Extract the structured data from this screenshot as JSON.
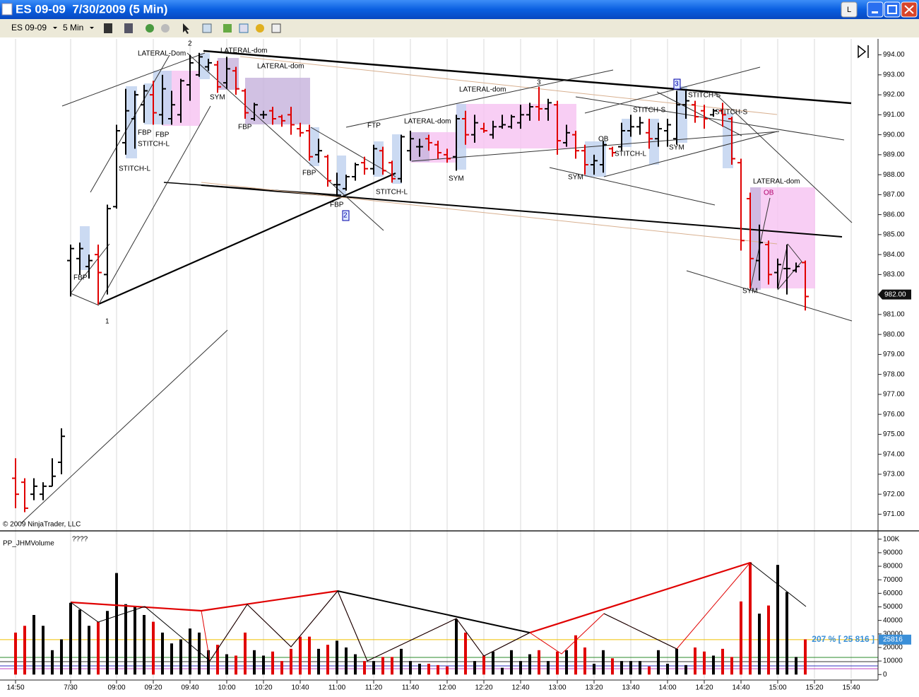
{
  "window": {
    "title": "ES 09-09  7/30/2009 (5 Min)",
    "button": "L"
  },
  "toolbar": {
    "instrument": "ES 09-09",
    "interval": "5 Min"
  },
  "copyright": "© 2009 NinjaTrader, LLC",
  "chart_data": [
    {
      "type": "ohlc",
      "up_color": "#000000",
      "down_color": "#e00000",
      "xgrid": true,
      "ylim": [
        970.2,
        994.8
      ],
      "yticks": [
        {
          "value": 994,
          "label": "994.00"
        },
        {
          "value": 993,
          "label": "993.00"
        },
        {
          "value": 992,
          "label": "992.00"
        },
        {
          "value": 991,
          "label": "991.00"
        },
        {
          "value": 990,
          "label": "990.00"
        },
        {
          "value": 989,
          "label": "989.00"
        },
        {
          "value": 988,
          "label": "988.00"
        },
        {
          "value": 987,
          "label": "987.00"
        },
        {
          "value": 986,
          "label": "986.00"
        },
        {
          "value": 985,
          "label": "985.00"
        },
        {
          "value": 984,
          "label": "984.00"
        },
        {
          "value": 983,
          "label": "983.00"
        },
        {
          "value": 982,
          "label": "982.00"
        },
        {
          "value": 981,
          "label": "981.00"
        },
        {
          "value": 980,
          "label": "980.00"
        },
        {
          "value": 979,
          "label": "979.00"
        },
        {
          "value": 978,
          "label": "978.00"
        },
        {
          "value": 977,
          "label": "977.00"
        },
        {
          "value": 976,
          "label": "976.00"
        },
        {
          "value": 975,
          "label": "975.00"
        },
        {
          "value": 974,
          "label": "974.00"
        },
        {
          "value": 973,
          "label": "973.00"
        },
        {
          "value": 972,
          "label": "972.00"
        },
        {
          "value": 971,
          "label": "971.00"
        }
      ],
      "last": {
        "value": 982,
        "label": "982.00"
      },
      "open": [
        972.8,
        972.6,
        972.0,
        972.0,
        972.4,
        973.6,
        983.7,
        983.8,
        983.4,
        984.0,
        983.0,
        986.4,
        989.6,
        990.8,
        991.5,
        992.0,
        991.0,
        990.8,
        991.0,
        992.5,
        993.0,
        993.4,
        993.5,
        992.6,
        993.2,
        992.2,
        990.8,
        991.0,
        991.2,
        990.9,
        991.0,
        990.3,
        990.2,
        989.0,
        988.9,
        987.5,
        987.3,
        987.9,
        988.6,
        988.3,
        989.2,
        988.6,
        987.8,
        989.2,
        989.4,
        989.8,
        989.5,
        989.0,
        988.9,
        990.8,
        990.0,
        990.3,
        990.0,
        990.4,
        990.4,
        990.6,
        991.0,
        991.4,
        991.3,
        991.5,
        989.6,
        990.0,
        989.2,
        988.5,
        988.5,
        989.3,
        989.4,
        990.2,
        990.4,
        990.1,
        989.8,
        990.2,
        989.8,
        991.5,
        991.5,
        991.2,
        991.0,
        991.2,
        990.8,
        988.6,
        986.8,
        983.7,
        984.5,
        983.1,
        983.3,
        983.2,
        983.6,
        null,
        null,
        null,
        null,
        null
      ],
      "high": [
        973.8,
        972.8,
        972.8,
        972.6,
        973.8,
        975.3,
        984.5,
        984.6,
        984.0,
        984.5,
        986.5,
        990.5,
        992.3,
        992.2,
        992.5,
        992.7,
        993.0,
        992.2,
        992.8,
        994.0,
        994.1,
        993.8,
        993.7,
        993.9,
        993.4,
        992.3,
        991.6,
        991.2,
        991.4,
        991.0,
        991.4,
        990.6,
        990.5,
        989.8,
        989.0,
        988.1,
        988.0,
        988.6,
        988.9,
        989.5,
        989.4,
        988.7,
        990.0,
        990.2,
        989.8,
        990.0,
        989.7,
        989.3,
        991.0,
        991.2,
        991.0,
        990.6,
        990.7,
        991.0,
        991.0,
        991.5,
        991.6,
        992.4,
        991.8,
        991.7,
        990.5,
        990.2,
        989.5,
        989.0,
        989.7,
        989.4,
        990.6,
        991.0,
        990.9,
        990.8,
        990.6,
        990.8,
        992.2,
        992.2,
        991.7,
        991.5,
        991.3,
        991.6,
        990.9,
        988.8,
        987.1,
        985.5,
        984.7,
        983.8,
        984.5,
        983.6,
        983.7,
        null,
        null,
        null,
        null,
        null
      ],
      "low": [
        971.3,
        971.1,
        971.7,
        971.7,
        972.4,
        973.0,
        981.9,
        983.0,
        982.8,
        981.5,
        982.0,
        986.3,
        989.0,
        989.3,
        990.6,
        990.5,
        990.5,
        990.5,
        990.6,
        991.7,
        992.9,
        993.2,
        992.1,
        992.3,
        992.0,
        990.8,
        990.7,
        990.8,
        990.5,
        990.4,
        990.0,
        989.9,
        988.7,
        988.6,
        987.4,
        986.9,
        987.2,
        987.7,
        988.0,
        988.0,
        988.0,
        987.6,
        987.6,
        988.7,
        988.9,
        989.2,
        988.8,
        988.6,
        988.2,
        989.5,
        989.6,
        990.1,
        989.8,
        990.3,
        990.3,
        990.3,
        990.7,
        990.7,
        990.7,
        989.0,
        989.4,
        988.8,
        988.0,
        988.0,
        988.1,
        988.9,
        989.2,
        989.9,
        990.0,
        989.3,
        989.4,
        989.4,
        989.5,
        990.8,
        990.6,
        990.3,
        990.9,
        990.4,
        988.5,
        984.2,
        982.3,
        982.7,
        982.5,
        982.3,
        982.0,
        983.1,
        981.2,
        null,
        null,
        null,
        null,
        null
      ],
      "close": [
        972.0,
        971.3,
        972.4,
        972.4,
        972.9,
        974.9,
        984.3,
        984.3,
        983.7,
        983.1,
        986.3,
        990.2,
        991.2,
        992.0,
        992.2,
        991.1,
        992.3,
        991.5,
        992.7,
        993.6,
        993.9,
        993.6,
        992.4,
        993.3,
        992.3,
        991.1,
        991.5,
        991.0,
        990.8,
        990.7,
        990.5,
        990.1,
        988.9,
        989.2,
        987.7,
        987.5,
        987.9,
        988.5,
        988.3,
        989.3,
        988.2,
        987.8,
        989.9,
        989.8,
        989.4,
        989.6,
        989.1,
        988.8,
        990.8,
        990.0,
        990.6,
        990.2,
        990.4,
        990.5,
        990.9,
        991.0,
        991.4,
        991.3,
        991.6,
        989.7,
        990.1,
        989.2,
        988.5,
        988.7,
        989.5,
        989.1,
        990.2,
        990.4,
        990.6,
        989.8,
        990.3,
        990.5,
        991.5,
        991.7,
        990.9,
        990.8,
        991.2,
        991.0,
        988.8,
        984.7,
        983.8,
        984.6,
        983.0,
        983.5,
        983.3,
        983.4,
        981.9,
        null,
        null,
        null,
        null,
        null
      ],
      "annotations": [
        "LATERAL-Dom",
        "2",
        "LATERAL-dom",
        "LATERAL-dom",
        "SYM",
        "FBP",
        "FBP",
        "FBP",
        "STITCH-L",
        "STITCH-L",
        "FBP",
        "1",
        "FBP",
        "FTP",
        "LATERAL-dom",
        "STITCH-L",
        "FBP",
        "2",
        "LATERAL-dom",
        "3",
        "SYM",
        "SYM",
        "OB",
        "STITCH-S",
        "STITCH-L",
        "SYM",
        "STITCH-S",
        "STITCH-S",
        "3",
        "LATERAL-dom",
        "OB",
        "SYM"
      ]
    },
    {
      "type": "bar",
      "title": "PP_JHMVolume",
      "subtitle": "????",
      "ylim": [
        -3000,
        103000
      ],
      "yticks": [
        {
          "value": 100000,
          "label": "100K"
        },
        90000,
        80000,
        70000,
        60000,
        50000,
        40000,
        30000,
        20000,
        10000,
        0
      ],
      "reference_line": {
        "value": 25816,
        "label": "207 % [ 25 816 ]",
        "color": "#f0c000"
      },
      "categories": [
        "14:50",
        null,
        null,
        null,
        null,
        null,
        "7/30",
        null,
        null,
        null,
        null,
        "09:00",
        null,
        null,
        null,
        "09:20",
        null,
        null,
        null,
        "09:40",
        null,
        null,
        null,
        "10:00",
        null,
        null,
        null,
        "10:20",
        null,
        null,
        null,
        "10:40",
        null,
        null,
        null,
        "11:00",
        null,
        null,
        null,
        "11:20",
        null,
        null,
        null,
        "11:40",
        null,
        null,
        null,
        "12:00",
        null,
        null,
        null,
        "12:20",
        null,
        null,
        null,
        "12:40",
        null,
        null,
        null,
        "13:00",
        null,
        null,
        null,
        "13:20",
        null,
        null,
        null,
        "13:40",
        null,
        null,
        null,
        "14:00",
        null,
        null,
        null,
        "14:20",
        null,
        null,
        null,
        "14:40",
        null,
        null,
        null,
        "15:00",
        null,
        null,
        null,
        "15:20",
        null,
        null,
        null,
        "15:40"
      ],
      "values": [
        31000,
        36000,
        44000,
        36000,
        18000,
        26000,
        53000,
        48000,
        36000,
        39000,
        47000,
        75000,
        52000,
        50000,
        44000,
        39000,
        31000,
        23000,
        26000,
        34000,
        31000,
        18000,
        22000,
        15000,
        14000,
        31000,
        18000,
        14000,
        17000,
        10000,
        19000,
        28000,
        28000,
        19000,
        22000,
        25000,
        20000,
        15000,
        10000,
        10000,
        13000,
        13000,
        19000,
        10000,
        8000,
        8000,
        7000,
        6000,
        41000,
        31000,
        10000,
        14000,
        17000,
        5000,
        18000,
        10000,
        15000,
        18000,
        10000,
        17000,
        18000,
        29000,
        20000,
        8000,
        18000,
        12000,
        10000,
        10000,
        10000,
        6000,
        18000,
        8000,
        19000,
        7000,
        20000,
        17000,
        14000,
        19000,
        13000,
        54000,
        83000,
        45000,
        51000,
        81000,
        61000,
        13000,
        26000,
        null,
        null,
        null,
        null,
        null
      ]
    }
  ]
}
